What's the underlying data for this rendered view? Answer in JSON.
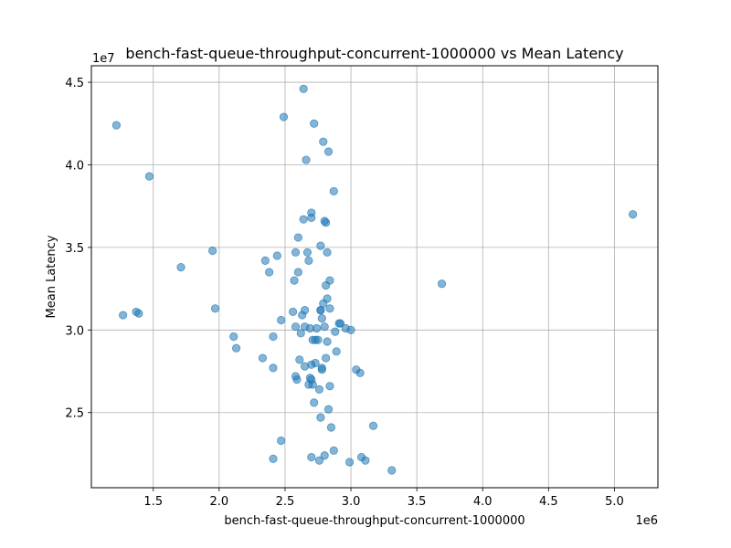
{
  "chart_data": {
    "type": "scatter",
    "title": "bench-fast-queue-throughput-concurrent-1000000 vs Mean Latency",
    "xlabel": "bench-fast-queue-throughput-concurrent-1000000",
    "ylabel": "Mean Latency",
    "x_offset_label": "1e6",
    "y_offset_label": "1e7",
    "xlim": [
      1.03,
      5.33
    ],
    "ylim": [
      2.045,
      4.6
    ],
    "x_ticks": [
      1.5,
      2.0,
      2.5,
      3.0,
      3.5,
      4.0,
      4.5,
      5.0
    ],
    "y_ticks": [
      2.5,
      3.0,
      3.5,
      4.0,
      4.5
    ],
    "x_tick_labels": [
      "1.5",
      "2.0",
      "2.5",
      "3.0",
      "3.5",
      "4.0",
      "4.5",
      "5.0"
    ],
    "y_tick_labels": [
      "2.5",
      "3.0",
      "3.5",
      "4.0",
      "4.5"
    ],
    "grid": true,
    "point_color": "#1f77b4",
    "point_alpha": 0.55,
    "points": [
      {
        "x": 1.22,
        "y": 4.24
      },
      {
        "x": 1.47,
        "y": 3.93
      },
      {
        "x": 1.27,
        "y": 3.09
      },
      {
        "x": 1.37,
        "y": 3.11
      },
      {
        "x": 1.39,
        "y": 3.1
      },
      {
        "x": 1.71,
        "y": 3.38
      },
      {
        "x": 1.95,
        "y": 3.48
      },
      {
        "x": 1.97,
        "y": 3.13
      },
      {
        "x": 2.11,
        "y": 2.96
      },
      {
        "x": 2.13,
        "y": 2.89
      },
      {
        "x": 2.33,
        "y": 2.83
      },
      {
        "x": 2.35,
        "y": 3.42
      },
      {
        "x": 2.38,
        "y": 3.35
      },
      {
        "x": 2.41,
        "y": 2.96
      },
      {
        "x": 2.41,
        "y": 2.77
      },
      {
        "x": 2.44,
        "y": 3.45
      },
      {
        "x": 2.41,
        "y": 2.22
      },
      {
        "x": 2.47,
        "y": 2.33
      },
      {
        "x": 2.47,
        "y": 3.06
      },
      {
        "x": 2.49,
        "y": 4.29
      },
      {
        "x": 2.56,
        "y": 3.11
      },
      {
        "x": 2.57,
        "y": 3.3
      },
      {
        "x": 2.58,
        "y": 3.47
      },
      {
        "x": 2.58,
        "y": 3.02
      },
      {
        "x": 2.58,
        "y": 2.72
      },
      {
        "x": 2.59,
        "y": 2.7
      },
      {
        "x": 2.6,
        "y": 3.56
      },
      {
        "x": 2.6,
        "y": 3.35
      },
      {
        "x": 2.61,
        "y": 2.82
      },
      {
        "x": 2.62,
        "y": 2.98
      },
      {
        "x": 2.63,
        "y": 3.09
      },
      {
        "x": 2.64,
        "y": 3.67
      },
      {
        "x": 2.64,
        "y": 4.46
      },
      {
        "x": 2.65,
        "y": 2.78
      },
      {
        "x": 2.65,
        "y": 3.02
      },
      {
        "x": 2.65,
        "y": 3.12
      },
      {
        "x": 2.66,
        "y": 4.03
      },
      {
        "x": 2.67,
        "y": 3.47
      },
      {
        "x": 2.68,
        "y": 3.42
      },
      {
        "x": 2.68,
        "y": 2.67
      },
      {
        "x": 2.69,
        "y": 3.01
      },
      {
        "x": 2.69,
        "y": 2.71
      },
      {
        "x": 2.7,
        "y": 2.7
      },
      {
        "x": 2.7,
        "y": 2.79
      },
      {
        "x": 2.7,
        "y": 2.23
      },
      {
        "x": 2.7,
        "y": 3.68
      },
      {
        "x": 2.7,
        "y": 3.71
      },
      {
        "x": 2.71,
        "y": 2.94
      },
      {
        "x": 2.71,
        "y": 2.67
      },
      {
        "x": 2.72,
        "y": 4.25
      },
      {
        "x": 2.72,
        "y": 2.56
      },
      {
        "x": 2.73,
        "y": 2.94
      },
      {
        "x": 2.73,
        "y": 2.8
      },
      {
        "x": 2.74,
        "y": 3.01
      },
      {
        "x": 2.75,
        "y": 2.94
      },
      {
        "x": 2.76,
        "y": 2.21
      },
      {
        "x": 2.76,
        "y": 2.64
      },
      {
        "x": 2.77,
        "y": 3.12
      },
      {
        "x": 2.77,
        "y": 2.47
      },
      {
        "x": 2.77,
        "y": 3.12
      },
      {
        "x": 2.77,
        "y": 3.51
      },
      {
        "x": 2.78,
        "y": 2.76
      },
      {
        "x": 2.78,
        "y": 3.07
      },
      {
        "x": 2.78,
        "y": 2.77
      },
      {
        "x": 2.79,
        "y": 4.14
      },
      {
        "x": 2.79,
        "y": 3.16
      },
      {
        "x": 2.8,
        "y": 3.02
      },
      {
        "x": 2.8,
        "y": 2.24
      },
      {
        "x": 2.8,
        "y": 3.66
      },
      {
        "x": 2.81,
        "y": 3.27
      },
      {
        "x": 2.81,
        "y": 3.65
      },
      {
        "x": 2.81,
        "y": 2.83
      },
      {
        "x": 2.82,
        "y": 3.47
      },
      {
        "x": 2.82,
        "y": 3.19
      },
      {
        "x": 2.82,
        "y": 2.93
      },
      {
        "x": 2.83,
        "y": 2.52
      },
      {
        "x": 2.83,
        "y": 4.08
      },
      {
        "x": 2.84,
        "y": 3.3
      },
      {
        "x": 2.84,
        "y": 3.13
      },
      {
        "x": 2.84,
        "y": 2.66
      },
      {
        "x": 2.85,
        "y": 2.41
      },
      {
        "x": 2.87,
        "y": 3.84
      },
      {
        "x": 2.87,
        "y": 2.27
      },
      {
        "x": 2.88,
        "y": 2.99
      },
      {
        "x": 2.89,
        "y": 2.87
      },
      {
        "x": 2.91,
        "y": 3.04
      },
      {
        "x": 2.92,
        "y": 3.04
      },
      {
        "x": 2.96,
        "y": 3.01
      },
      {
        "x": 2.99,
        "y": 2.2
      },
      {
        "x": 3.0,
        "y": 3.0
      },
      {
        "x": 3.04,
        "y": 2.76
      },
      {
        "x": 3.07,
        "y": 2.74
      },
      {
        "x": 3.08,
        "y": 2.23
      },
      {
        "x": 3.11,
        "y": 2.21
      },
      {
        "x": 3.17,
        "y": 2.42
      },
      {
        "x": 3.31,
        "y": 2.15
      },
      {
        "x": 3.69,
        "y": 3.28
      },
      {
        "x": 5.14,
        "y": 3.7
      }
    ]
  }
}
